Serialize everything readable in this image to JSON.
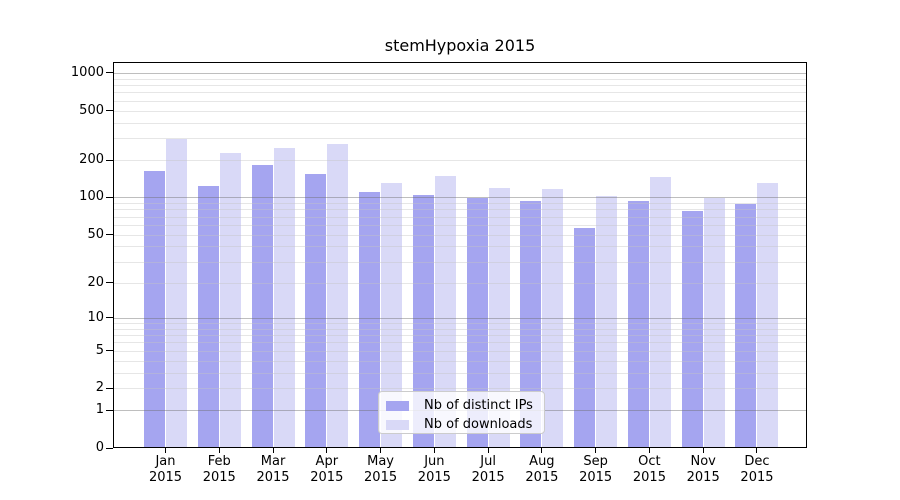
{
  "title": "stemHypoxia 2015",
  "legend": {
    "items": [
      {
        "label": "Nb of distinct IPs",
        "color": "#a5a5f0"
      },
      {
        "label": "Nb of downloads",
        "color": "#d9d9f7"
      }
    ]
  },
  "chart_data": {
    "type": "bar",
    "title": "stemHypoxia 2015",
    "categories": [
      "Jan 2015",
      "Feb 2015",
      "Mar 2015",
      "Apr 2015",
      "May 2015",
      "Jun 2015",
      "Jul 2015",
      "Aug 2015",
      "Sep 2015",
      "Oct 2015",
      "Nov 2015",
      "Dec 2015"
    ],
    "series": [
      {
        "name": "Nb of distinct IPs",
        "color": "#a5a5f0",
        "values": [
          164,
          124,
          183,
          155,
          110,
          104,
          99,
          94,
          57,
          93,
          77,
          89
        ]
      },
      {
        "name": "Nb of downloads",
        "color": "#d9d9f7",
        "values": [
          295,
          226,
          250,
          270,
          132,
          150,
          120,
          117,
          102,
          145,
          99,
          130
        ]
      }
    ],
    "xlabel": "",
    "ylabel": "",
    "y_axis": {
      "tick_labels": [
        "1000",
        "500",
        "200",
        "100",
        "50",
        "20",
        "10",
        "5",
        "2",
        "1",
        "0"
      ],
      "ticks": [
        1000,
        500,
        200,
        100,
        50,
        20,
        10,
        5,
        2,
        1,
        0
      ],
      "scale": "log10(value+1)",
      "range": [
        0,
        1100
      ],
      "major_grid_values": [
        1,
        10,
        100,
        1000
      ],
      "minor_grid_values": [
        2,
        3,
        4,
        5,
        6,
        7,
        8,
        9,
        20,
        30,
        40,
        50,
        60,
        70,
        80,
        90,
        200,
        300,
        400,
        500,
        600,
        700,
        800,
        900
      ]
    },
    "grid": {
      "on": true,
      "major_color": "#bcbcbc",
      "minor_color": "#e6e6e6",
      "drawn_over_bars": true
    },
    "legend_position": "lower center",
    "colors": {
      "background": "#ffffff",
      "axis": "#000000",
      "text": "#000000"
    }
  }
}
